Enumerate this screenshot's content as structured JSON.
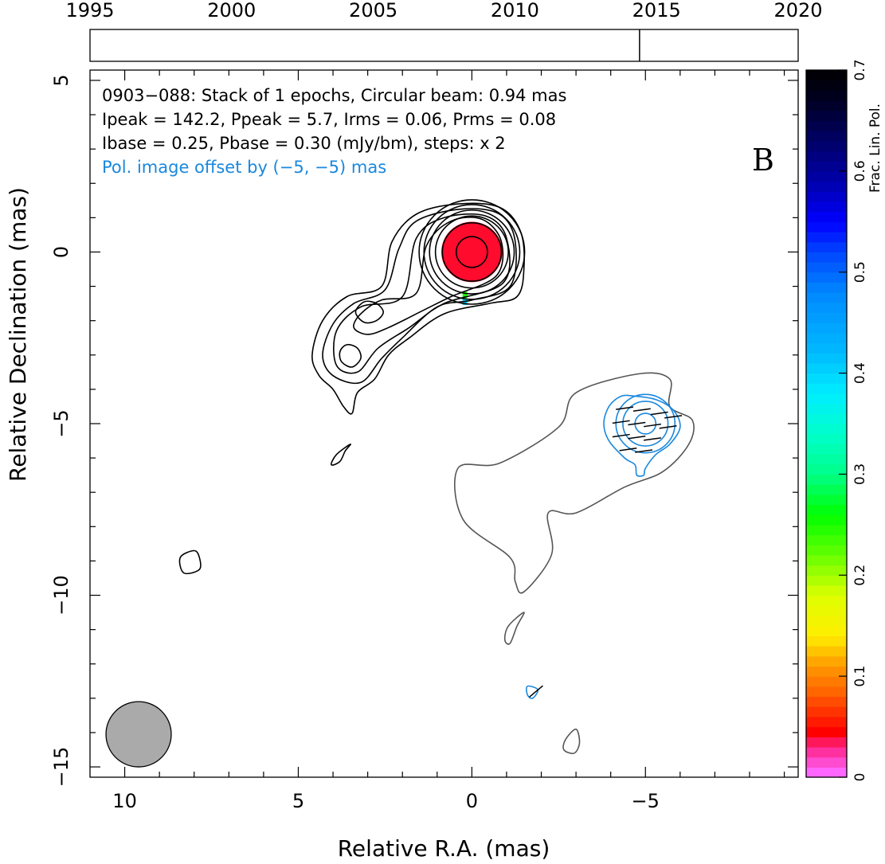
{
  "chart_data": {
    "type": "contour",
    "title_lines": [
      "0903−088: Stack of 1 epochs, Circular beam: 0.94 mas",
      "Ipeak = 142.2, Ppeak = 5.7, Irms = 0.06, Prms = 0.08",
      "Ibase = 0.25, Pbase = 0.30 (mJy/bm), steps: x 2"
    ],
    "offset_note": "Pol. image offset by (−5, −5) mas",
    "panel_label": "B",
    "xlabel": "Relative R.A. (mas)",
    "ylabel": "Relative Declination (mas)",
    "xlim": [
      11,
      -9.4
    ],
    "ylim": [
      -15.3,
      5.3
    ],
    "xticks": [
      {
        "v": 10,
        "label": "10"
      },
      {
        "v": 5,
        "label": "5"
      },
      {
        "v": 0,
        "label": "0"
      },
      {
        "v": -5,
        "label": "−5"
      }
    ],
    "yticks": [
      {
        "v": 5,
        "label": "5"
      },
      {
        "v": 0,
        "label": "0"
      },
      {
        "v": -5,
        "label": "−5"
      },
      {
        "v": -10,
        "label": "−10"
      },
      {
        "v": -15,
        "label": "−15"
      }
    ],
    "timeline": {
      "years": [
        {
          "v": 1995,
          "label": "1995"
        },
        {
          "v": 2000,
          "label": "2000"
        },
        {
          "v": 2005,
          "label": "2005"
        },
        {
          "v": 2010,
          "label": "2010"
        },
        {
          "v": 2015,
          "label": "2015"
        },
        {
          "v": 2020,
          "label": "2020"
        }
      ],
      "range": [
        1995,
        2020
      ],
      "epochs": [
        2014.4
      ]
    },
    "colorbar": {
      "title": "Frac. Lin. Pol.",
      "range": [
        0,
        0.7
      ],
      "ticks": [
        {
          "v": 0,
          "label": "0"
        },
        {
          "v": 0.1,
          "label": "0.1"
        },
        {
          "v": 0.2,
          "label": "0.2"
        },
        {
          "v": 0.3,
          "label": "0.3"
        },
        {
          "v": 0.4,
          "label": "0.4"
        },
        {
          "v": 0.5,
          "label": "0.5"
        },
        {
          "v": 0.6,
          "label": "0.6"
        },
        {
          "v": 0.7,
          "label": "0.7"
        }
      ],
      "stops": [
        [
          0.0,
          "#ffffff"
        ],
        [
          0.005,
          "#ff66ff"
        ],
        [
          0.03,
          "#ff2288"
        ],
        [
          0.045,
          "#ff0000"
        ],
        [
          0.085,
          "#ff6600"
        ],
        [
          0.11,
          "#ff9900"
        ],
        [
          0.14,
          "#ffee00"
        ],
        [
          0.18,
          "#ddff00"
        ],
        [
          0.22,
          "#66ff00"
        ],
        [
          0.26,
          "#00ff00"
        ],
        [
          0.3,
          "#00ff88"
        ],
        [
          0.34,
          "#00ffcc"
        ],
        [
          0.38,
          "#00eeff"
        ],
        [
          0.42,
          "#00bbff"
        ],
        [
          0.48,
          "#0088ff"
        ],
        [
          0.52,
          "#0044ff"
        ],
        [
          0.55,
          "#0000ff"
        ],
        [
          0.59,
          "#0000aa"
        ],
        [
          0.63,
          "#000066"
        ],
        [
          0.67,
          "#000022"
        ],
        [
          0.7,
          "#000000"
        ]
      ]
    },
    "beam_fwhm_mas": 0.94,
    "colors": {
      "total_intensity": "#000000",
      "offset_intensity": "#555555",
      "polarization": "#1a88dd",
      "beam": "#aaaaaa",
      "epoch_marker": "#000000"
    },
    "contours": [
      {
        "kind": "total_intensity",
        "ring": true,
        "cx": 0,
        "cy": 0,
        "radii": [
          0.45,
          0.85,
          1.05,
          1.22,
          1.38,
          1.52
        ]
      },
      {
        "kind": "total_intensity",
        "poly": [
          [
            2.6,
            -1.0
          ],
          [
            3.6,
            -1.3
          ],
          [
            4.3,
            -2.0
          ],
          [
            4.6,
            -3.0
          ],
          [
            4.4,
            -3.6
          ],
          [
            4.0,
            -4.0
          ],
          [
            3.7,
            -4.5
          ],
          [
            3.45,
            -4.7
          ],
          [
            3.3,
            -4.1
          ],
          [
            2.8,
            -3.7
          ],
          [
            2.4,
            -3.0
          ],
          [
            1.8,
            -2.5
          ],
          [
            0.8,
            -1.8
          ],
          [
            -0.5,
            -1.5
          ],
          [
            -1.3,
            -1.3
          ],
          [
            -1.5,
            -0.5
          ],
          [
            -1.4,
            0.6
          ],
          [
            -0.8,
            1.3
          ],
          [
            0.4,
            1.4
          ],
          [
            1.6,
            1.1
          ],
          [
            2.3,
            0.3
          ]
        ]
      },
      {
        "kind": "total_intensity",
        "poly": [
          [
            2.5,
            -1.1
          ],
          [
            3.4,
            -1.5
          ],
          [
            4.0,
            -2.1
          ],
          [
            4.3,
            -3.0
          ],
          [
            4.0,
            -3.6
          ],
          [
            3.2,
            -3.8
          ],
          [
            2.6,
            -3.1
          ],
          [
            2.0,
            -2.5
          ],
          [
            1.0,
            -1.6
          ],
          [
            0.0,
            -1.4
          ],
          [
            -1.1,
            -1.0
          ],
          [
            -1.25,
            0.3
          ],
          [
            -0.8,
            1.1
          ],
          [
            0.3,
            1.25
          ],
          [
            1.6,
            0.9
          ],
          [
            2.1,
            0.1
          ]
        ]
      },
      {
        "kind": "total_intensity",
        "poly": [
          [
            2.0,
            -1.3
          ],
          [
            3.2,
            -1.6
          ],
          [
            3.9,
            -2.3
          ],
          [
            3.9,
            -3.3
          ],
          [
            3.3,
            -3.5
          ],
          [
            2.7,
            -2.8
          ],
          [
            1.8,
            -2.2
          ],
          [
            0.8,
            -1.5
          ],
          [
            -0.9,
            -0.9
          ],
          [
            -1.0,
            0.4
          ],
          [
            -0.4,
            1.05
          ],
          [
            0.8,
            1.0
          ],
          [
            1.6,
            0.4
          ]
        ]
      },
      {
        "kind": "total_intensity",
        "poly": [
          [
            1.6,
            -1.2
          ],
          [
            2.6,
            -1.4
          ],
          [
            3.2,
            -1.8
          ],
          [
            3.4,
            -2.2
          ],
          [
            3.0,
            -2.4
          ],
          [
            2.4,
            -2.2
          ],
          [
            1.4,
            -1.7
          ],
          [
            0.6,
            -1.3
          ],
          [
            -0.7,
            -0.7
          ],
          [
            -0.85,
            0.3
          ],
          [
            -0.3,
            0.95
          ],
          [
            0.6,
            0.9
          ],
          [
            1.3,
            0.2
          ]
        ]
      },
      {
        "kind": "total_intensity",
        "poly": [
          [
            3.1,
            -1.45
          ],
          [
            2.75,
            -1.5
          ],
          [
            2.55,
            -1.75
          ],
          [
            2.75,
            -2.0
          ],
          [
            3.1,
            -2.05
          ],
          [
            3.35,
            -1.75
          ]
        ]
      },
      {
        "kind": "total_intensity",
        "poly": [
          [
            3.6,
            -2.7
          ],
          [
            3.3,
            -2.8
          ],
          [
            3.2,
            -3.1
          ],
          [
            3.45,
            -3.35
          ],
          [
            3.75,
            -3.2
          ],
          [
            3.8,
            -2.9
          ]
        ]
      },
      {
        "kind": "total_intensity",
        "poly": [
          [
            3.5,
            -5.6
          ],
          [
            3.9,
            -5.9
          ],
          [
            4.05,
            -6.2
          ],
          [
            3.8,
            -6.1
          ],
          [
            3.65,
            -5.8
          ]
        ]
      },
      {
        "kind": "total_intensity",
        "poly": [
          [
            8.0,
            -8.7
          ],
          [
            8.4,
            -8.9
          ],
          [
            8.3,
            -9.35
          ],
          [
            7.85,
            -9.25
          ],
          [
            7.85,
            -8.9
          ]
        ]
      },
      {
        "kind": "offset_intensity",
        "poly": [
          [
            -5.7,
            -4.5
          ],
          [
            -6.35,
            -4.9
          ],
          [
            -6.25,
            -5.6
          ],
          [
            -5.5,
            -6.4
          ],
          [
            -4.4,
            -6.85
          ],
          [
            -3.0,
            -7.6
          ],
          [
            -2.2,
            -7.6
          ],
          [
            -2.3,
            -8.8
          ],
          [
            -1.5,
            -9.9
          ],
          [
            -1.25,
            -9.6
          ],
          [
            -1.1,
            -8.9
          ],
          [
            0.25,
            -7.8
          ],
          [
            0.4,
            -6.3
          ],
          [
            -0.8,
            -6.15
          ],
          [
            -2.5,
            -5.1
          ],
          [
            -3.0,
            -4.1
          ],
          [
            -4.8,
            -3.55
          ],
          [
            -5.7,
            -3.7
          ]
        ]
      },
      {
        "kind": "offset_intensity",
        "poly": [
          [
            -1.5,
            -10.5
          ],
          [
            -1.3,
            -10.9
          ],
          [
            -1.1,
            -11.4
          ],
          [
            -0.95,
            -11.3
          ],
          [
            -1.05,
            -10.9
          ]
        ]
      },
      {
        "kind": "offset_intensity",
        "poly": [
          [
            -3.0,
            -13.9
          ],
          [
            -2.7,
            -14.2
          ],
          [
            -2.65,
            -14.5
          ],
          [
            -2.95,
            -14.6
          ],
          [
            -3.1,
            -14.3
          ]
        ]
      },
      {
        "kind": "polarization",
        "ring": true,
        "cx": -5,
        "cy": -5,
        "radii": [
          0.3,
          0.65,
          0.85
        ]
      },
      {
        "kind": "polarization",
        "poly": [
          [
            -4.3,
            -4.2
          ],
          [
            -4.7,
            -4.2
          ],
          [
            -5.3,
            -4.3
          ],
          [
            -5.8,
            -4.6
          ],
          [
            -6.0,
            -5.1
          ],
          [
            -5.7,
            -5.6
          ],
          [
            -5.3,
            -5.9
          ],
          [
            -5.0,
            -6.3
          ],
          [
            -4.95,
            -6.5
          ],
          [
            -4.75,
            -6.5
          ],
          [
            -4.7,
            -6.2
          ],
          [
            -4.4,
            -6.0
          ],
          [
            -3.95,
            -5.5
          ],
          [
            -3.8,
            -5.0
          ],
          [
            -3.95,
            -4.5
          ]
        ]
      },
      {
        "kind": "polarization",
        "poly": [
          [
            -1.6,
            -12.65
          ],
          [
            -1.9,
            -12.75
          ],
          [
            -1.75,
            -13.0
          ],
          [
            -1.6,
            -12.9
          ]
        ]
      }
    ],
    "fractional_polarization": [
      {
        "x": 0,
        "y": 0,
        "r": 0.88,
        "value": 0.04
      },
      {
        "x": 0.2,
        "y": -1.25,
        "value": 0.25
      },
      {
        "x": 0.2,
        "y": -1.45,
        "value": 0.4
      }
    ],
    "evpa_ticks": [
      {
        "x": -4.4,
        "y": -4.55,
        "angle_deg": 8
      },
      {
        "x": -4.9,
        "y": -4.6,
        "angle_deg": 8
      },
      {
        "x": -5.4,
        "y": -4.7,
        "angle_deg": 8
      },
      {
        "x": -5.8,
        "y": -4.8,
        "angle_deg": 8
      },
      {
        "x": -4.3,
        "y": -4.95,
        "angle_deg": 8
      },
      {
        "x": -4.75,
        "y": -5.0,
        "angle_deg": 8
      },
      {
        "x": -5.2,
        "y": -5.05,
        "angle_deg": 8
      },
      {
        "x": -5.65,
        "y": -5.1,
        "angle_deg": 8
      },
      {
        "x": -4.3,
        "y": -5.35,
        "angle_deg": 8
      },
      {
        "x": -4.75,
        "y": -5.4,
        "angle_deg": 8
      },
      {
        "x": -5.2,
        "y": -5.45,
        "angle_deg": 8
      },
      {
        "x": -4.5,
        "y": -5.75,
        "angle_deg": 8
      },
      {
        "x": -4.95,
        "y": -5.8,
        "angle_deg": 8
      },
      {
        "x": -1.85,
        "y": -12.8,
        "angle_deg": 40
      }
    ]
  }
}
